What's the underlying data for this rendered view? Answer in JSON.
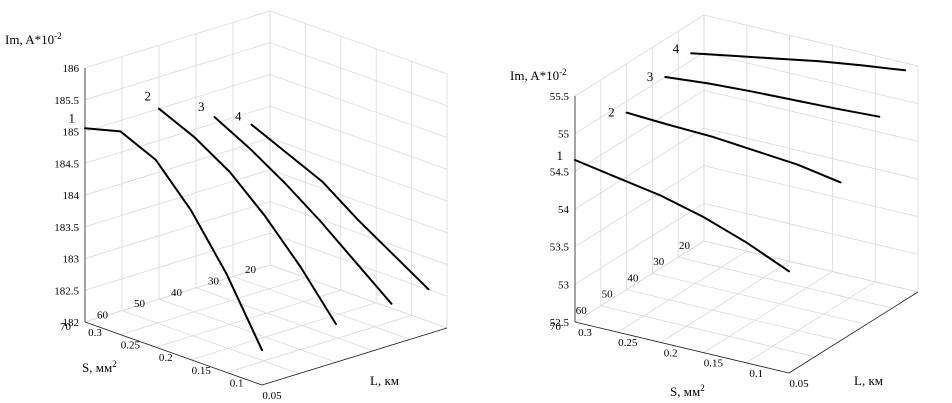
{
  "chart_data": [
    {
      "type": "line",
      "zlabel": "Im, A*10",
      "zlabel_sup": "-2",
      "xlabel": "L, км",
      "ylabel": "S, мм",
      "ylabel_sup": "2",
      "z_ticks": [
        "182",
        "182.5",
        "183",
        "183.5",
        "184",
        "184.5",
        "185",
        "185.5",
        "186"
      ],
      "x_ticks": [
        "0.05",
        "0.1",
        "0.15",
        "0.2",
        "0.25",
        "0.3"
      ],
      "y_ticks": [
        "20",
        "30",
        "40",
        "50",
        "60",
        "70"
      ],
      "x_range": [
        0.05,
        0.3
      ],
      "y_range": [
        20,
        70
      ],
      "z_range": [
        182,
        186
      ],
      "grid": true,
      "series": [
        {
          "name": "1",
          "points": [
            {
              "L": 0.05,
              "S": 70,
              "Im": 182.55
            },
            {
              "L": 0.1,
              "S": 70,
              "Im": 183.55
            },
            {
              "L": 0.15,
              "S": 70,
              "Im": 184.35
            },
            {
              "L": 0.2,
              "S": 70,
              "Im": 184.95
            },
            {
              "L": 0.25,
              "S": 70,
              "Im": 185.2
            },
            {
              "L": 0.3,
              "S": 70,
              "Im": 185.05
            }
          ]
        },
        {
          "name": "2",
          "points": [
            {
              "L": 0.05,
              "S": 50,
              "Im": 182.6
            },
            {
              "L": 0.1,
              "S": 50,
              "Im": 183.3
            },
            {
              "L": 0.15,
              "S": 50,
              "Im": 183.9
            },
            {
              "L": 0.2,
              "S": 50,
              "Im": 184.4
            },
            {
              "L": 0.25,
              "S": 50,
              "Im": 184.75
            },
            {
              "L": 0.3,
              "S": 50,
              "Im": 185.0
            }
          ]
        },
        {
          "name": "3",
          "points": [
            {
              "L": 0.05,
              "S": 35,
              "Im": 182.65
            },
            {
              "L": 0.1,
              "S": 35,
              "Im": 183.1
            },
            {
              "L": 0.15,
              "S": 35,
              "Im": 183.55
            },
            {
              "L": 0.2,
              "S": 35,
              "Im": 183.95
            },
            {
              "L": 0.25,
              "S": 35,
              "Im": 184.3
            },
            {
              "L": 0.3,
              "S": 35,
              "Im": 184.6
            }
          ]
        },
        {
          "name": "4",
          "points": [
            {
              "L": 0.05,
              "S": 25,
              "Im": 182.7
            },
            {
              "L": 0.1,
              "S": 25,
              "Im": 183.05
            },
            {
              "L": 0.15,
              "S": 25,
              "Im": 183.4
            },
            {
              "L": 0.2,
              "S": 25,
              "Im": 183.8
            },
            {
              "L": 0.25,
              "S": 25,
              "Im": 184.05
            },
            {
              "L": 0.3,
              "S": 25,
              "Im": 184.3
            }
          ]
        }
      ]
    },
    {
      "type": "line",
      "zlabel": "Im, A*10",
      "zlabel_sup": "-2",
      "xlabel": "L, км",
      "ylabel": "S, мм",
      "ylabel_sup": "2",
      "z_ticks": [
        "52.5",
        "53",
        "53.5",
        "54",
        "54.5",
        "55",
        "55.5"
      ],
      "x_ticks": [
        "0.05",
        "0.1",
        "0.15",
        "0.2",
        "0.25",
        "0.3"
      ],
      "y_ticks": [
        "20",
        "30",
        "40",
        "50",
        "60",
        "70"
      ],
      "x_range": [
        0.05,
        0.3
      ],
      "y_range": [
        20,
        70
      ],
      "z_range": [
        52.5,
        55.5
      ],
      "grid": true,
      "series": [
        {
          "name": "1",
          "points": [
            {
              "L": 0.05,
              "S": 70,
              "Im": 53.85
            },
            {
              "L": 0.1,
              "S": 70,
              "Im": 54.1
            },
            {
              "L": 0.15,
              "S": 70,
              "Im": 54.3
            },
            {
              "L": 0.2,
              "S": 70,
              "Im": 54.45
            },
            {
              "L": 0.25,
              "S": 70,
              "Im": 54.55
            },
            {
              "L": 0.3,
              "S": 70,
              "Im": 54.65
            }
          ]
        },
        {
          "name": "2",
          "points": [
            {
              "L": 0.05,
              "S": 50,
              "Im": 54.6
            },
            {
              "L": 0.1,
              "S": 50,
              "Im": 54.7
            },
            {
              "L": 0.15,
              "S": 50,
              "Im": 54.75
            },
            {
              "L": 0.2,
              "S": 50,
              "Im": 54.8
            },
            {
              "L": 0.25,
              "S": 50,
              "Im": 54.82
            },
            {
              "L": 0.3,
              "S": 50,
              "Im": 54.85
            }
          ]
        },
        {
          "name": "3",
          "points": [
            {
              "L": 0.05,
              "S": 35,
              "Im": 55.15
            },
            {
              "L": 0.1,
              "S": 35,
              "Im": 55.12
            },
            {
              "L": 0.15,
              "S": 35,
              "Im": 55.1
            },
            {
              "L": 0.2,
              "S": 35,
              "Im": 55.08
            },
            {
              "L": 0.25,
              "S": 35,
              "Im": 55.05
            },
            {
              "L": 0.3,
              "S": 35,
              "Im": 55.0
            }
          ]
        },
        {
          "name": "4",
          "points": [
            {
              "L": 0.05,
              "S": 25,
              "Im": 55.55
            },
            {
              "L": 0.1,
              "S": 25,
              "Im": 55.48
            },
            {
              "L": 0.15,
              "S": 25,
              "Im": 55.4
            },
            {
              "L": 0.2,
              "S": 25,
              "Im": 55.3
            },
            {
              "L": 0.25,
              "S": 25,
              "Im": 55.2
            },
            {
              "L": 0.3,
              "S": 25,
              "Im": 55.1
            }
          ]
        }
      ]
    }
  ]
}
